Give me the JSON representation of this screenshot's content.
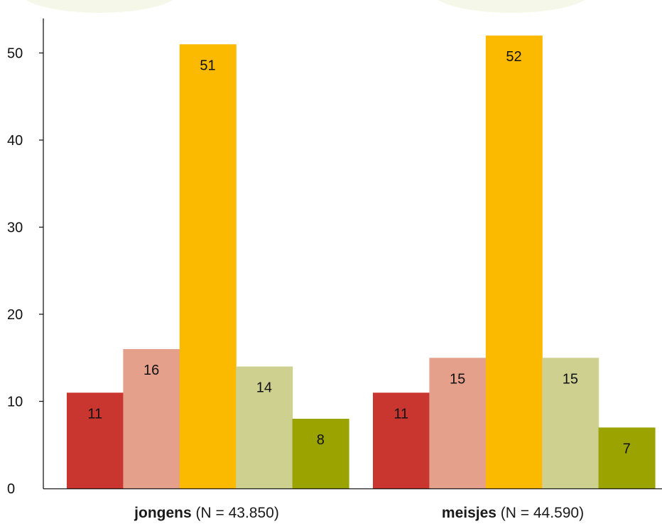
{
  "chart_data": {
    "type": "bar",
    "ylim": [
      0,
      55
    ],
    "yticks": [
      0,
      10,
      20,
      30,
      40,
      50
    ],
    "grid": false,
    "legend": "none",
    "categories": [
      {
        "name": "jongens",
        "suffix": " (N = 43.850)"
      },
      {
        "name": "meisjes",
        "suffix": " (N = 44.590)"
      }
    ],
    "series": [
      {
        "color": "#c8362f",
        "values": [
          11,
          11
        ],
        "labels": [
          "11",
          "11"
        ]
      },
      {
        "color": "#e4a08b",
        "values": [
          16,
          15
        ],
        "labels": [
          "16",
          "15"
        ]
      },
      {
        "color": "#fbb900",
        "values": [
          51,
          52
        ],
        "labels": [
          "51",
          "52"
        ]
      },
      {
        "color": "#cdd08f",
        "values": [
          14,
          15
        ],
        "labels": [
          "14",
          "15"
        ]
      },
      {
        "color": "#9aa300",
        "values": [
          8,
          7
        ],
        "labels": [
          "8",
          "7"
        ]
      }
    ]
  },
  "colors": {
    "axis": "#1a1a1a",
    "background_decoration": "#f5f8e8"
  }
}
